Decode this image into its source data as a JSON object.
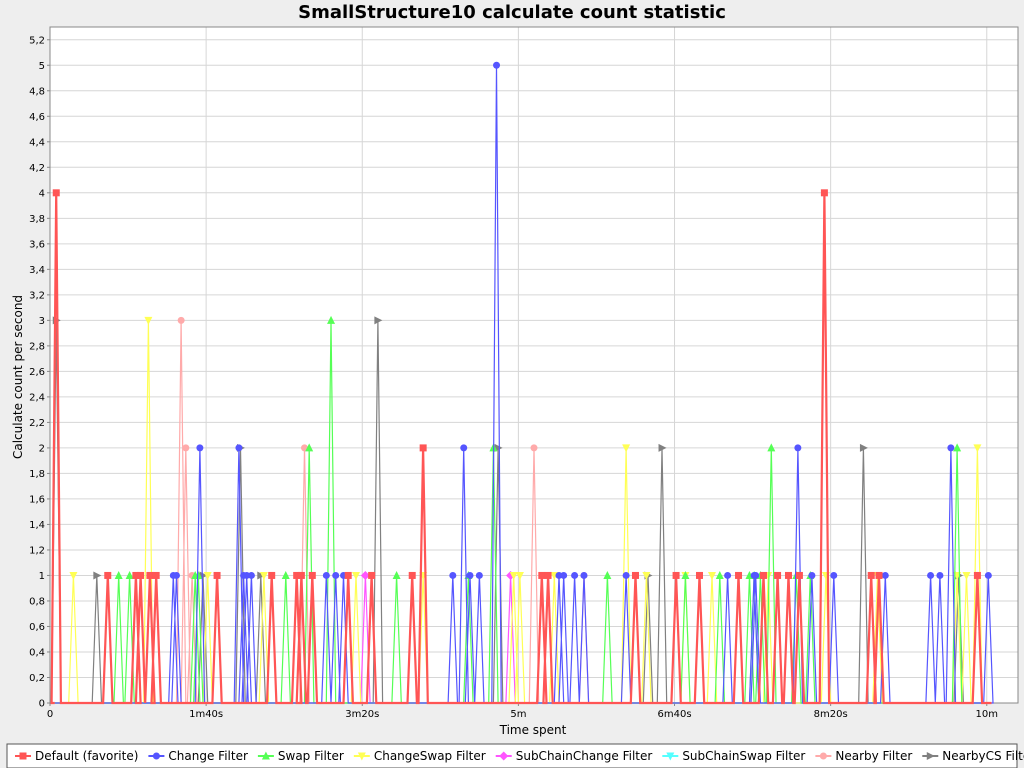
{
  "chart_data": {
    "type": "line",
    "title": "SmallStructure10 calculate count statistic",
    "xlabel": "Time spent",
    "ylabel": "Calculate count per second",
    "xlim": [
      0,
      620
    ],
    "ylim": [
      0,
      5.3
    ],
    "x_ticks": [
      {
        "value": 0,
        "label": "0"
      },
      {
        "value": 100,
        "label": "1m40s"
      },
      {
        "value": 200,
        "label": "3m20s"
      },
      {
        "value": 300,
        "label": "5m"
      },
      {
        "value": 400,
        "label": "6m40s"
      },
      {
        "value": 500,
        "label": "8m20s"
      },
      {
        "value": 600,
        "label": "10m"
      }
    ],
    "y_ticks": [
      "0",
      "0,2",
      "0,4",
      "0,6",
      "0,8",
      "1",
      "1,2",
      "1,4",
      "1,6",
      "1,8",
      "2",
      "2,2",
      "2,4",
      "2,6",
      "2,8",
      "3",
      "3,2",
      "3,4",
      "3,6",
      "3,8",
      "4",
      "4,2",
      "4,4",
      "4,6",
      "4,8",
      "5",
      "5,2"
    ],
    "y_tick_values": [
      0,
      0.2,
      0.4,
      0.6,
      0.8,
      1,
      1.2,
      1.4,
      1.6,
      1.8,
      2,
      2.2,
      2.4,
      2.6,
      2.8,
      3,
      3.2,
      3.4,
      3.6,
      3.8,
      4,
      4.2,
      4.4,
      4.6,
      4.8,
      5,
      5.2
    ],
    "grid": true,
    "legend_position": "bottom",
    "series": [
      {
        "name": "Default (favorite)",
        "color": "#ff5555",
        "marker": "square",
        "spikes": [
          [
            4,
            4
          ],
          [
            37,
            1
          ],
          [
            55,
            1
          ],
          [
            58,
            1
          ],
          [
            64,
            1
          ],
          [
            68,
            1
          ],
          [
            107,
            1
          ],
          [
            142,
            1
          ],
          [
            158,
            1
          ],
          [
            161,
            1
          ],
          [
            168,
            1
          ],
          [
            191,
            1
          ],
          [
            206,
            1
          ],
          [
            232,
            1
          ],
          [
            239,
            2
          ],
          [
            315,
            1
          ],
          [
            319,
            1
          ],
          [
            375,
            1
          ],
          [
            401,
            1
          ],
          [
            416,
            1
          ],
          [
            441,
            1
          ],
          [
            457,
            1
          ],
          [
            466,
            1
          ],
          [
            473,
            1
          ],
          [
            480,
            1
          ],
          [
            496,
            4
          ],
          [
            526,
            1
          ],
          [
            531,
            1
          ],
          [
            594,
            1
          ]
        ]
      },
      {
        "name": "Change Filter",
        "color": "#5555ff",
        "marker": "circle",
        "spikes": [
          [
            96,
            2
          ],
          [
            79,
            1
          ],
          [
            81,
            1
          ],
          [
            121,
            2
          ],
          [
            124,
            1
          ],
          [
            126,
            1
          ],
          [
            129,
            1
          ],
          [
            177,
            1
          ],
          [
            183,
            1
          ],
          [
            188,
            1
          ],
          [
            258,
            1
          ],
          [
            265,
            2
          ],
          [
            269,
            1
          ],
          [
            275,
            1
          ],
          [
            286,
            5
          ],
          [
            326,
            1
          ],
          [
            329,
            1
          ],
          [
            336,
            1
          ],
          [
            342,
            1
          ],
          [
            369,
            1
          ],
          [
            434,
            1
          ],
          [
            451,
            1
          ],
          [
            452,
            1
          ],
          [
            479,
            2
          ],
          [
            488,
            1
          ],
          [
            502,
            1
          ],
          [
            535,
            1
          ],
          [
            564,
            1
          ],
          [
            570,
            1
          ],
          [
            577,
            2
          ],
          [
            601,
            1
          ]
        ]
      },
      {
        "name": "Swap Filter",
        "color": "#55ff55",
        "marker": "triangle-up",
        "spikes": [
          [
            44,
            1
          ],
          [
            51,
            1
          ],
          [
            93,
            1
          ],
          [
            95,
            1
          ],
          [
            151,
            1
          ],
          [
            166,
            2
          ],
          [
            180,
            3
          ],
          [
            222,
            1
          ],
          [
            268,
            1
          ],
          [
            284,
            2
          ],
          [
            357,
            1
          ],
          [
            407,
            1
          ],
          [
            429,
            1
          ],
          [
            448,
            1
          ],
          [
            451,
            1
          ],
          [
            455,
            1
          ],
          [
            462,
            2
          ],
          [
            478,
            1
          ],
          [
            487,
            1
          ],
          [
            581,
            2
          ]
        ]
      },
      {
        "name": "ChangeSwap Filter",
        "color": "#ffff55",
        "marker": "triangle-down",
        "spikes": [
          [
            15,
            1
          ],
          [
            63,
            3
          ],
          [
            101,
            1
          ],
          [
            137,
            1
          ],
          [
            196,
            1
          ],
          [
            239,
            1
          ],
          [
            297,
            1
          ],
          [
            301,
            1
          ],
          [
            323,
            1
          ],
          [
            369,
            2
          ],
          [
            382,
            1
          ],
          [
            407,
            1
          ],
          [
            424,
            1
          ],
          [
            460,
            1
          ],
          [
            497,
            1
          ],
          [
            530,
            1
          ],
          [
            581,
            1
          ],
          [
            587,
            1
          ],
          [
            594,
            2
          ]
        ]
      },
      {
        "name": "SubChainChange Filter",
        "color": "#ff55ff",
        "marker": "diamond",
        "spikes": [
          [
            202,
            1
          ],
          [
            295,
            1
          ]
        ]
      },
      {
        "name": "SubChainSwap Filter",
        "color": "#55ffff",
        "marker": "triangle-down",
        "spikes": []
      },
      {
        "name": "Nearby Filter",
        "color": "#ffaaaa",
        "marker": "circle",
        "spikes": [
          [
            87,
            2
          ],
          [
            84,
            3
          ],
          [
            91,
            1
          ],
          [
            163,
            2
          ],
          [
            310,
            2
          ],
          [
            342,
            1
          ]
        ]
      },
      {
        "name": "NearbyCS Filter",
        "color": "#808080",
        "marker": "triangle-right",
        "spikes": [
          [
            4,
            3
          ],
          [
            30,
            1
          ],
          [
            98,
            1
          ],
          [
            122,
            2
          ],
          [
            135,
            1
          ],
          [
            210,
            3
          ],
          [
            287,
            2
          ],
          [
            392,
            2
          ],
          [
            383,
            1
          ],
          [
            521,
            2
          ],
          [
            582,
            1
          ]
        ]
      }
    ]
  }
}
